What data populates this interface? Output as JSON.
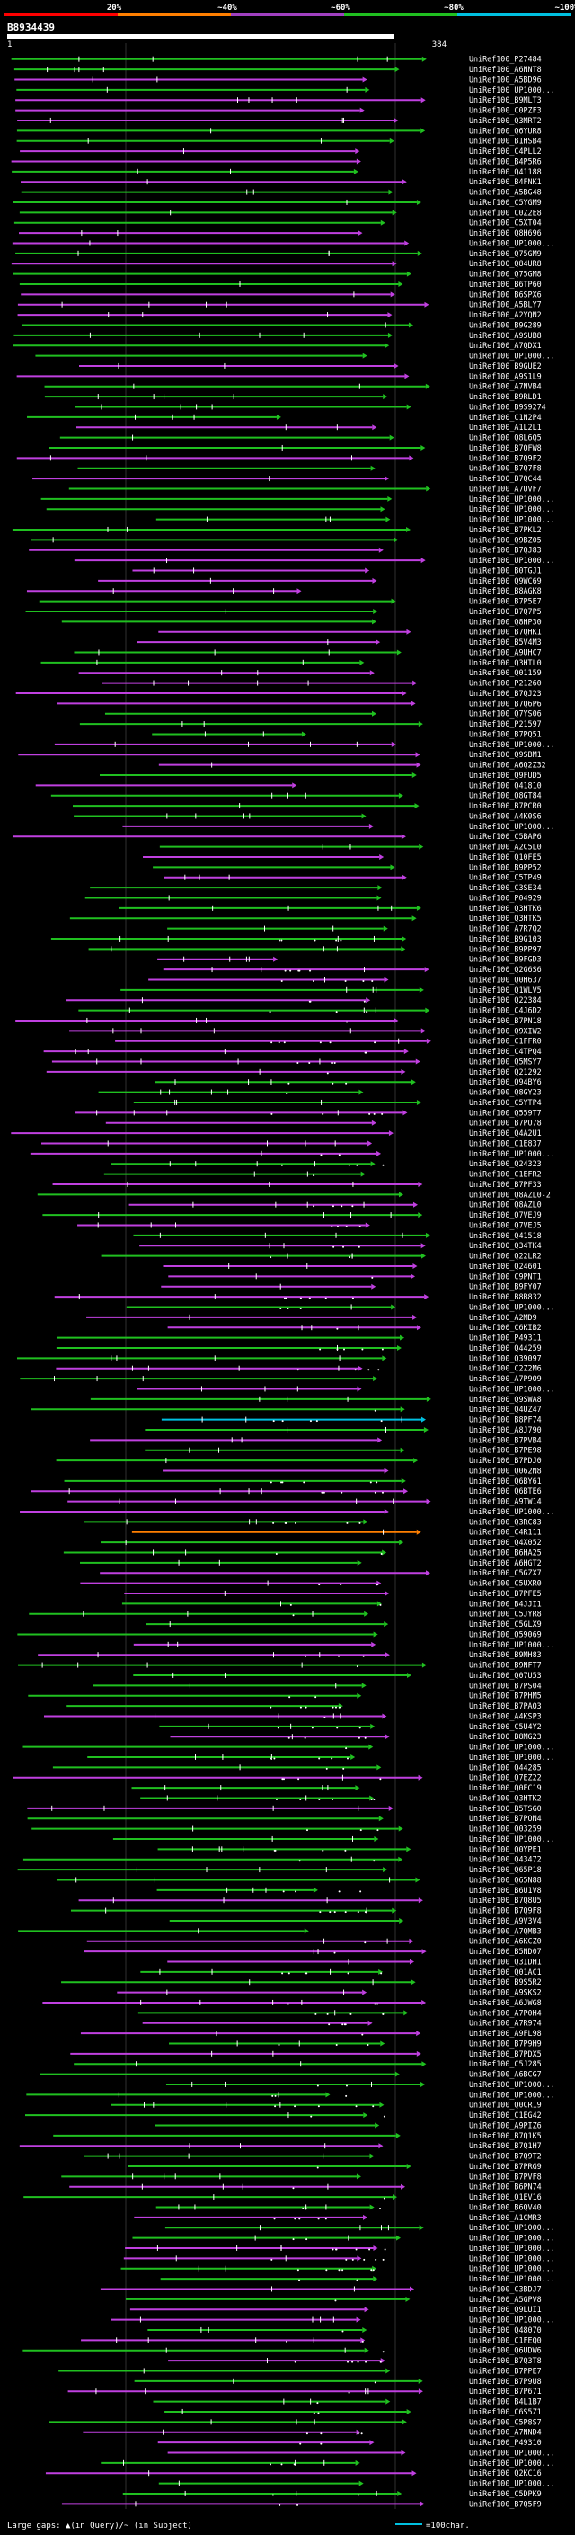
{
  "chart_data": {
    "type": "alignment-overview",
    "query_id": "B8934439",
    "query_start": "1",
    "query_end": "384",
    "identity_legend": [
      {
        "label": "20%",
        "color": "#ff0000"
      },
      {
        "label": "~40%",
        "color": "#ff7f00"
      },
      {
        "label": "~60%",
        "color": "#a040c0"
      },
      {
        "label": "~80%",
        "color": "#20c020"
      },
      {
        "label": "~100%",
        "color": "#00c0e0"
      }
    ],
    "footer_gap_label": "Large gaps: ▲(in Query)/~ (in Subject)",
    "footer_scale_label": "=100char.",
    "hits": [
      "UniRef100_P27484",
      "UniRef100_A6NNT8",
      "UniRef100_A5BD96",
      "UniRef100_UP1000...",
      "UniRef100_B9MLT3",
      "UniRef100_C0PZF3",
      "UniRef100_Q3MRT2",
      "UniRef100_Q6YUR8",
      "UniRef100_B1HSB4",
      "UniRef100_C4PLL2",
      "UniRef100_B4P5R6",
      "UniRef100_Q41188",
      "UniRef100_B4FNK1",
      "UniRef100_A5BG48",
      "UniRef100_C5YGM9",
      "UniRef100_C0Z2E8",
      "UniRef100_C5XT04",
      "UniRef100_Q8H696",
      "UniRef100_UP1000...",
      "UniRef100_Q75GM9",
      "UniRef100_Q84UR8",
      "UniRef100_Q75GM8",
      "UniRef100_B6TP60",
      "UniRef100_B6SPX6",
      "UniRef100_A5BLY7",
      "UniRef100_A2YQN2",
      "UniRef100_B9G289",
      "UniRef100_A9SUB8",
      "UniRef100_A7QDX1",
      "UniRef100_UP1000...",
      "UniRef100_B9GUE2",
      "UniRef100_A9S1L9",
      "UniRef100_A7NVB4",
      "UniRef100_B9RLD1",
      "UniRef100_B9S9274",
      "UniRef100_C1N2P4",
      "UniRef100_A1L2L1",
      "UniRef100_Q8L6Q5",
      "UniRef100_B7QFW8",
      "UniRef100_B7Q9F2",
      "UniRef100_B7Q7F8",
      "UniRef100_B7QC44",
      "UniRef100_A7UVF7",
      "UniRef100_UP1000...",
      "UniRef100_UP1000...",
      "UniRef100_UP1000...",
      "UniRef100_B7PKL2",
      "UniRef100_Q9BZ05",
      "UniRef100_B7QJ83",
      "UniRef100_UP1000...",
      "UniRef100_B0TGJ1",
      "UniRef100_Q9WC69",
      "UniRef100_B8AGK8",
      "UniRef100_B7P5E7",
      "UniRef100_B7Q7P5",
      "UniRef100_Q8HP30",
      "UniRef100_B7QHK1",
      "UniRef100_B5V4M3",
      "UniRef100_A9UHC7",
      "UniRef100_Q3HTL0",
      "UniRef100_Q01159",
      "UniRef100_P21260",
      "UniRef100_B7QJ23",
      "UniRef100_B7Q6P6",
      "UniRef100_Q7YS06",
      "UniRef100_P21597",
      "UniRef100_B7PQ51",
      "UniRef100_UP1000...",
      "UniRef100_Q9SBM1",
      "UniRef100_A6Q2Z32",
      "UniRef100_Q9FUD5",
      "UniRef100_Q41810",
      "UniRef100_Q8GT84",
      "UniRef100_B7PCR0",
      "UniRef100_A4K0S6",
      "UniRef100_UP1000...",
      "UniRef100_C5BAP6",
      "UniRef100_A2C5L0",
      "UniRef100_Q10FE5",
      "UniRef100_B9PP52",
      "UniRef100_C5TP49",
      "UniRef100_C3SE34",
      "UniRef100_P04929",
      "UniRef100_Q3HTK6",
      "UniRef100_Q3HTK5",
      "UniRef100_A7R7Q2",
      "UniRef100_B9G103",
      "UniRef100_B9PP97",
      "UniRef100_B9FGD3",
      "UniRef100_Q2G6S6",
      "UniRef100_Q0H637",
      "UniRef100_Q1WLV5",
      "UniRef100_Q22384",
      "UniRef100_C4J6D2",
      "UniRef100_B7PN18",
      "UniRef100_Q9XIW2",
      "UniRef100_C1FFR0",
      "UniRef100_C4TPQ4",
      "UniRef100_Q5MSY7",
      "UniRef100_Q21292",
      "UniRef100_Q94BY6",
      "UniRef100_Q8GY23",
      "UniRef100_C5YTP4",
      "UniRef100_Q559T7",
      "UniRef100_B7PO78",
      "UniRef100_Q4A2U1",
      "UniRef100_C1E837",
      "UniRef100_UP1000...",
      "UniRef100_Q24323",
      "UniRef100_C1EFR2",
      "UniRef100_B7PF33",
      "UniRef100_Q8AZL0-2",
      "UniRef100_Q8AZL0",
      "UniRef100_Q7VEJ9",
      "UniRef100_Q7VEJ5",
      "UniRef100_Q41518",
      "UniRef100_Q34TK4",
      "UniRef100_Q22LR2",
      "UniRef100_Q24601",
      "UniRef100_C9PNT1",
      "UniRef100_B9FY07",
      "UniRef100_B8B832",
      "UniRef100_UP1000...",
      "UniRef100_A2MD9",
      "UniRef100_C6KIB2",
      "UniRef100_P49311",
      "UniRef100_Q44259",
      "UniRef100_Q39097",
      "UniRef100_C2Z2M6",
      "UniRef100_A7P9O9",
      "UniRef100_UP1000...",
      "UniRef100_Q9SWA8",
      "UniRef100_Q4UZ47",
      "UniRef100_B8PF74",
      "UniRef100_A8J790",
      "UniRef100_B7PVB4",
      "UniRef100_B7PE98",
      "UniRef100_B7PDJ0",
      "UniRef100_Q062N8",
      "UniRef100_Q6BY61",
      "UniRef100_Q6BTE6",
      "UniRef100_A9TW14",
      "UniRef100_UP1000...",
      "UniRef100_Q3RC83",
      "UniRef100_C4R111",
      "UniRef100_Q4X052",
      "UniRef100_B6HA25",
      "UniRef100_A6HGT2",
      "UniRef100_C5GZX7",
      "UniRef100_C5UXR0",
      "UniRef100_B7PFE5",
      "UniRef100_B4JJI1",
      "UniRef100_C5JYR8",
      "UniRef100_C5GLX9",
      "UniRef100_Q59069",
      "UniRef100_UP1000...",
      "UniRef100_B9MH83",
      "UniRef100_B9NFT7",
      "UniRef100_Q07U53",
      "UniRef100_B7PS04",
      "UniRef100_B7PHM5",
      "UniRef100_B7PAQ3",
      "UniRef100_A4KSP3",
      "UniRef100_C5U4Y2",
      "UniRef100_B8MG23",
      "UniRef100_UP1000...",
      "UniRef100_UP1000...",
      "UniRef100_Q44285",
      "UniRef100_Q7EZ22",
      "UniRef100_Q0EC19",
      "UniRef100_Q3HTK2",
      "UniRef100_B5TSG0",
      "UniRef100_B7PON4",
      "UniRef100_Q03259",
      "UniRef100_UP1000...",
      "UniRef100_Q0YPE1",
      "UniRef100_Q43472",
      "UniRef100_Q65P18",
      "UniRef100_Q65N88",
      "UniRef100_B6U1V8",
      "UniRef100_B7Q8U5",
      "UniRef100_B7Q9F8",
      "UniRef100_A9V3V4",
      "UniRef100_A7QMB3",
      "UniRef100_A6KCZ0",
      "UniRef100_B5ND07",
      "UniRef100_Q3IDH1",
      "UniRef100_Q01AC1",
      "UniRef100_B9S5R2",
      "UniRef100_A9SKS2",
      "UniRef100_A6JWG8",
      "UniRef100_A7P0H4",
      "UniRef100_A7R974",
      "UniRef100_A9FL98",
      "UniRef100_B7P9H9",
      "UniRef100_B7PDX5",
      "UniRef100_C5J285",
      "UniRef100_A6BCG7",
      "UniRef100_UP1000...",
      "UniRef100_UP1000...",
      "UniRef100_Q0CR19",
      "UniRef100_C1EG42",
      "UniRef100_A9PIZ6",
      "UniRef100_B7Q1K5",
      "UniRef100_B7Q1H7",
      "UniRef100_B7Q9T2",
      "UniRef100_B7PRG9",
      "UniRef100_B7PVF8",
      "UniRef100_B6PN74",
      "UniRef100_Q1EV16",
      "UniRef100_B6QV40",
      "UniRef100_A1CMR3",
      "UniRef100_UP1000...",
      "UniRef100_UP1000...",
      "UniRef100_UP1000...",
      "UniRef100_UP1000...",
      "UniRef100_UP1000...",
      "UniRef100_UP1000...",
      "UniRef100_C3BDJ7",
      "UniRef100_A5GPV8",
      "UniRef100_Q9LUI1",
      "UniRef100_UP1000...",
      "UniRef100_Q48070",
      "UniRef100_C1FEQ0",
      "UniRef100_Q6UDW6",
      "UniRef100_B7Q3T8",
      "UniRef100_B7PPE7",
      "UniRef100_B7P9U8",
      "UniRef100_B7P671",
      "UniRef100_B4L1B7",
      "UniRef100_C6S5Z1",
      "UniRef100_C5P8S7",
      "UniRef100_A7NND4",
      "UniRef100_P49310",
      "UniRef100_UP1000...",
      "UniRef100_UP1000...",
      "UniRef100_Q2KC16",
      "UniRef100_UP1000...",
      "UniRef100_C5DPK9",
      "UniRef100_B7Q5F9"
    ]
  }
}
